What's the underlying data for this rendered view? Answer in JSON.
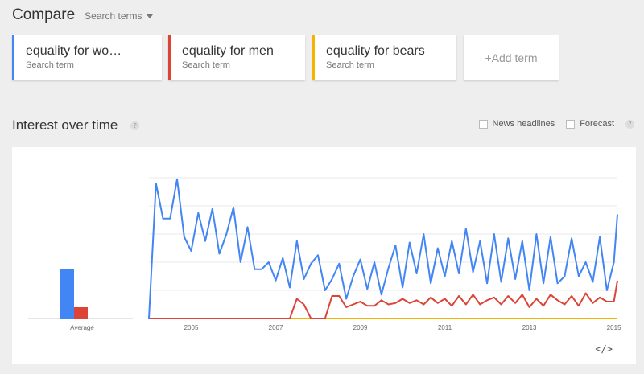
{
  "header": {
    "title": "Compare",
    "dropdown_label": "Search terms"
  },
  "terms": [
    {
      "name": "equality for wo…",
      "sub": "Search term",
      "color": "#4285f4"
    },
    {
      "name": "equality for men",
      "sub": "Search term",
      "color": "#db4437"
    },
    {
      "name": "equality for bears",
      "sub": "Search term",
      "color": "#f4b400"
    }
  ],
  "add_term_label": "+Add term",
  "section": {
    "title": "Interest over time",
    "help": "?",
    "news_label": "News headlines",
    "forecast_label": "Forecast",
    "forecast_help": "?"
  },
  "embed_label": "</>",
  "chart_data": [
    {
      "type": "bar",
      "categories": [
        "Average"
      ],
      "series": [
        {
          "name": "equality for wo…",
          "values": [
            35
          ]
        },
        {
          "name": "equality for men",
          "values": [
            8
          ]
        },
        {
          "name": "equality for bears",
          "values": [
            0
          ]
        }
      ],
      "ylim": [
        0,
        100
      ]
    },
    {
      "type": "line",
      "x": [
        "2004-01",
        "2004-03",
        "2004-05",
        "2004-07",
        "2004-09",
        "2004-11",
        "2005-01",
        "2005-03",
        "2005-05",
        "2005-07",
        "2005-09",
        "2005-11",
        "2006-01",
        "2006-03",
        "2006-05",
        "2006-07",
        "2006-09",
        "2006-11",
        "2007-01",
        "2007-03",
        "2007-05",
        "2007-07",
        "2007-09",
        "2007-11",
        "2008-01",
        "2008-03",
        "2008-05",
        "2008-07",
        "2008-09",
        "2008-11",
        "2009-01",
        "2009-03",
        "2009-05",
        "2009-07",
        "2009-09",
        "2009-11",
        "2010-01",
        "2010-03",
        "2010-05",
        "2010-07",
        "2010-09",
        "2010-11",
        "2011-01",
        "2011-03",
        "2011-05",
        "2011-07",
        "2011-09",
        "2011-11",
        "2012-01",
        "2012-03",
        "2012-05",
        "2012-07",
        "2012-09",
        "2012-11",
        "2013-01",
        "2013-03",
        "2013-05",
        "2013-07",
        "2013-09",
        "2013-11",
        "2014-01",
        "2014-03",
        "2014-05",
        "2014-07",
        "2014-09",
        "2014-11",
        "2015-01",
        "2015-02"
      ],
      "x_ticks": [
        "2005",
        "2007",
        "2009",
        "2011",
        "2013",
        "2015"
      ],
      "series": [
        {
          "name": "equality for wo…",
          "color": "#4285f4",
          "values": [
            0,
            96,
            71,
            71,
            99,
            58,
            48,
            75,
            55,
            78,
            46,
            60,
            79,
            40,
            65,
            35,
            35,
            40,
            27,
            43,
            22,
            55,
            28,
            39,
            45,
            20,
            28,
            39,
            14,
            30,
            42,
            21,
            40,
            17,
            36,
            52,
            22,
            54,
            32,
            60,
            25,
            50,
            30,
            55,
            32,
            64,
            33,
            55,
            25,
            60,
            26,
            57,
            28,
            55,
            20,
            60,
            25,
            58,
            25,
            30,
            57,
            30,
            40,
            26,
            58,
            20,
            40,
            74
          ]
        },
        {
          "name": "equality for men",
          "color": "#db4437",
          "values": [
            0,
            0,
            0,
            0,
            0,
            0,
            0,
            0,
            0,
            0,
            0,
            0,
            0,
            0,
            0,
            0,
            0,
            0,
            0,
            0,
            0,
            14,
            10,
            0,
            0,
            0,
            16,
            16,
            8,
            10,
            12,
            9,
            9,
            13,
            10,
            11,
            14,
            11,
            13,
            10,
            15,
            11,
            14,
            9,
            16,
            10,
            17,
            10,
            13,
            15,
            10,
            16,
            11,
            17,
            8,
            14,
            9,
            17,
            13,
            10,
            16,
            9,
            18,
            11,
            15,
            12,
            12,
            27
          ]
        },
        {
          "name": "equality for bears",
          "color": "#f4b400",
          "values": [
            0,
            0,
            0,
            0,
            0,
            0,
            0,
            0,
            0,
            0,
            0,
            0,
            0,
            0,
            0,
            0,
            0,
            0,
            0,
            0,
            0,
            0,
            0,
            0,
            0,
            0,
            0,
            0,
            0,
            0,
            0,
            0,
            0,
            0,
            0,
            0,
            0,
            0,
            0,
            0,
            0,
            0,
            0,
            0,
            0,
            0,
            0,
            0,
            0,
            0,
            0,
            0,
            0,
            0,
            0,
            0,
            0,
            0,
            0,
            0,
            0,
            0,
            0,
            0,
            0,
            0,
            0,
            0
          ]
        }
      ],
      "ylim": [
        0,
        100
      ],
      "grid": true
    }
  ]
}
